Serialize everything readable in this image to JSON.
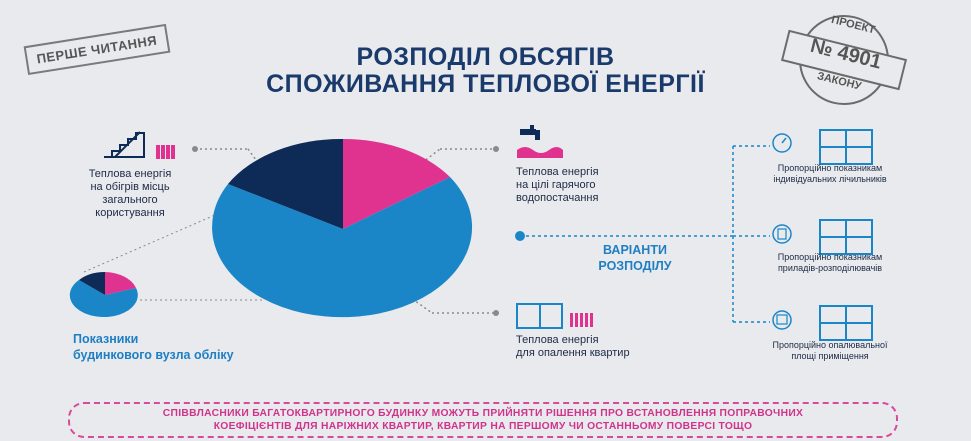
{
  "title_line1": "РОЗПОДІЛ ОБСЯГІВ",
  "title_line2": "СПОЖИВАННЯ ТЕПЛОВОЇ ЕНЕРГІЇ",
  "stamp_left": "ПЕРШЕ ЧИТАННЯ",
  "stamp_right": {
    "top": "ПРОЕКТ",
    "number": "№ 4901",
    "bottom": "ЗАКОНУ"
  },
  "labels": {
    "common_heating": [
      "Теплова енергія",
      "на обігрів місць",
      "загального",
      "користування"
    ],
    "hot_water": [
      "Теплова енергія",
      "на цілі гарячого",
      "водопостачання"
    ],
    "apartment_heating": [
      "Теплова енергія",
      "для опалення квартир"
    ],
    "meter": [
      "Показники",
      "будинкового вузла обліку"
    ],
    "variants": [
      "ВАРІАНТИ",
      "РОЗПОДІЛУ"
    ]
  },
  "options": [
    [
      "Пропорційно показникам",
      "індивідуальних лічильників"
    ],
    [
      "Пропорційно показникам",
      "приладів-розподілювачів"
    ],
    [
      "Пропорційно опалювальної",
      "площі приміщення"
    ]
  ],
  "banner_line1": "СПІВВЛАСНИКИ БАГАТОКВАРТИРНОГО БУДИНКУ  МОЖУТЬ ПРИЙНЯТИ РІШЕННЯ ПРО ВСТАНОВЛЕННЯ ПОПРАВОЧНИХ",
  "banner_line2": "КОЕФІЦІЄНТІВ ДЛЯ НАРІЖНИХ КВАРТИР, КВАРТИР НА ПЕРШОМУ ЧИ ОСТАННЬОМУ ПОВЕРСІ ТОЩО",
  "colors": {
    "navy": "#0e2a57",
    "magenta": "#e0338f",
    "blue": "#1a86c8",
    "text": "#1d2a45"
  }
}
